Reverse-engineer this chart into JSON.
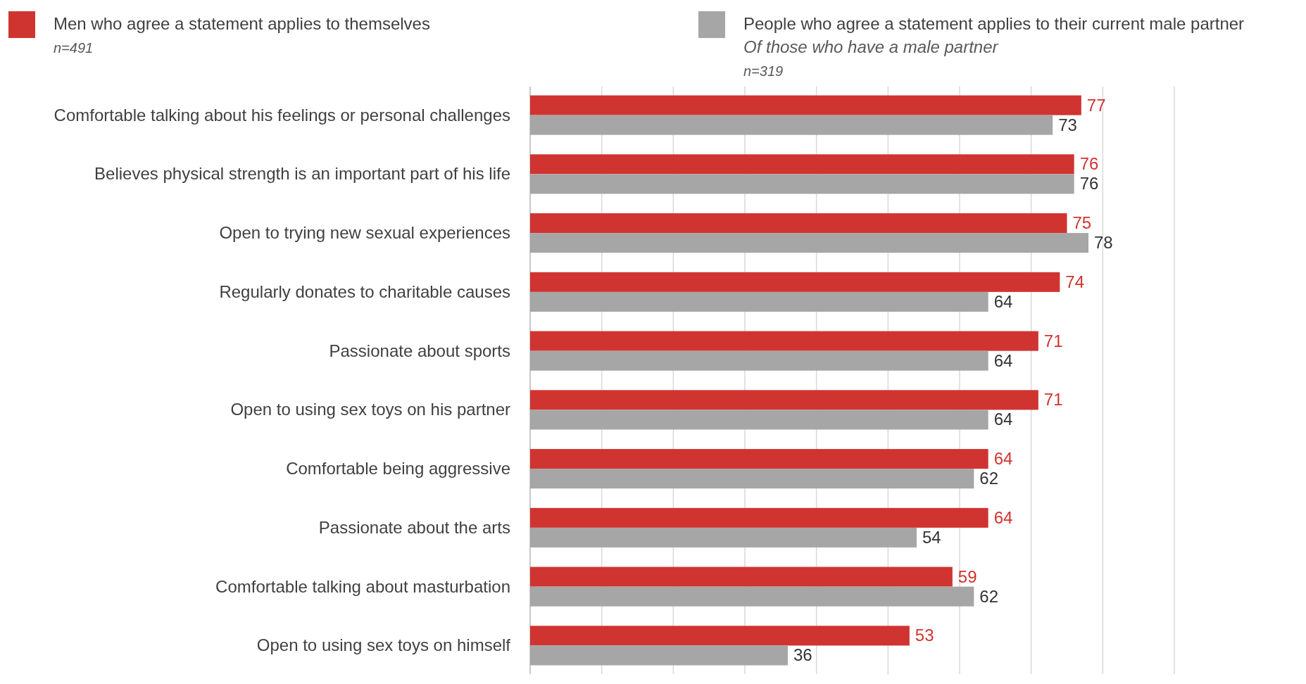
{
  "chart_data": {
    "type": "bar",
    "orientation": "horizontal",
    "categories": [
      "Comfortable talking about his feelings or personal challenges",
      "Believes physical strength is an important part of his life",
      "Open to trying new sexual experiences",
      "Regularly donates to charitable causes",
      "Passionate about sports",
      "Open to using sex toys on his partner",
      "Comfortable being aggressive",
      "Passionate about the arts",
      "Comfortable talking about masturbation",
      "Open to using sex toys on himself"
    ],
    "series": [
      {
        "name": "Men who agree a statement applies to themselves",
        "color": "#d03430",
        "values": [
          77,
          76,
          75,
          74,
          71,
          71,
          64,
          64,
          59,
          53
        ]
      },
      {
        "name": "People who agree a statement applies to their current male partner",
        "color": "#a6a6a6",
        "values": [
          73,
          76,
          78,
          64,
          64,
          64,
          62,
          54,
          62,
          36
        ]
      }
    ],
    "xlim": [
      0,
      90
    ],
    "xticks": [
      {
        "value": 0,
        "label": null
      },
      {
        "value": 10,
        "label": null
      },
      {
        "value": 20,
        "label": null
      },
      {
        "value": 30,
        "label": null
      },
      {
        "value": 40,
        "label": null
      },
      {
        "value": 50,
        "label": null
      },
      {
        "value": 60,
        "label": null
      },
      {
        "value": 70,
        "label": null
      },
      {
        "value": 80,
        "label": null
      },
      {
        "value": 90,
        "label": null
      }
    ],
    "tick_labels": "y",
    "grid": "x",
    "legend": "top",
    "data_labels": true,
    "annotations": [
      "n=491",
      "Of those who have a male partner",
      "n=319"
    ]
  }
}
